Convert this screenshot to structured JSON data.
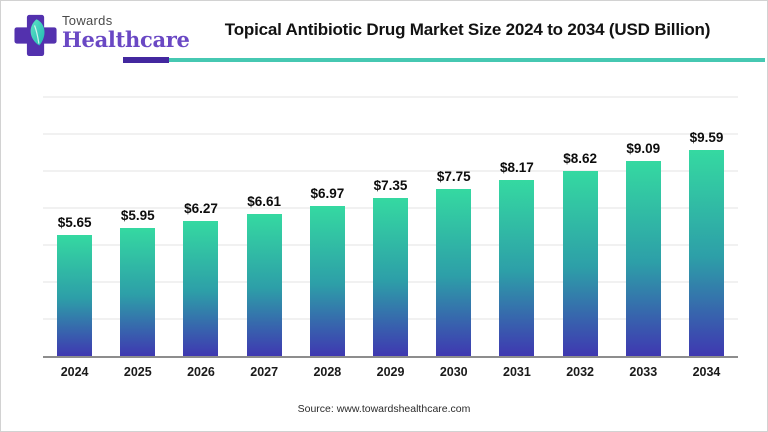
{
  "header": {
    "logo": {
      "brand_top": "Towards",
      "brand_bottom": "Healthcare"
    },
    "title": "Topical Antibiotic Drug Market Size 2024 to 2034 (USD Billion)"
  },
  "colors": {
    "accent_purple": "#43289f",
    "accent_teal": "#46c8b2",
    "logo_purple": "#5331ae",
    "bar_gradient_top": "#35d9a1",
    "bar_gradient_mid": "#2d9fa8",
    "bar_gradient_bottom": "#3f38b1"
  },
  "chart_data": {
    "type": "bar",
    "title": "Topical Antibiotic Drug Market Size 2024 to 2034 (USD Billion)",
    "categories": [
      "2024",
      "2025",
      "2026",
      "2027",
      "2028",
      "2029",
      "2030",
      "2031",
      "2032",
      "2033",
      "2034"
    ],
    "values": [
      5.65,
      5.95,
      6.27,
      6.61,
      6.97,
      7.35,
      7.75,
      8.17,
      8.62,
      9.09,
      9.59
    ],
    "value_labels": [
      "$5.65",
      "$5.95",
      "$6.27",
      "$6.61",
      "$6.97",
      "$7.35",
      "$7.75",
      "$8.17",
      "$8.62",
      "$9.09",
      "$9.59"
    ],
    "xlabel": "",
    "ylabel": "",
    "unit": "USD Billion",
    "ylim": [
      0,
      12
    ],
    "grid": "faint horizontal gridlines",
    "legend": "none",
    "data_label_format": "$X.XX above each bar"
  },
  "footer": {
    "source": "Source: www.towardshealthcare.com"
  }
}
